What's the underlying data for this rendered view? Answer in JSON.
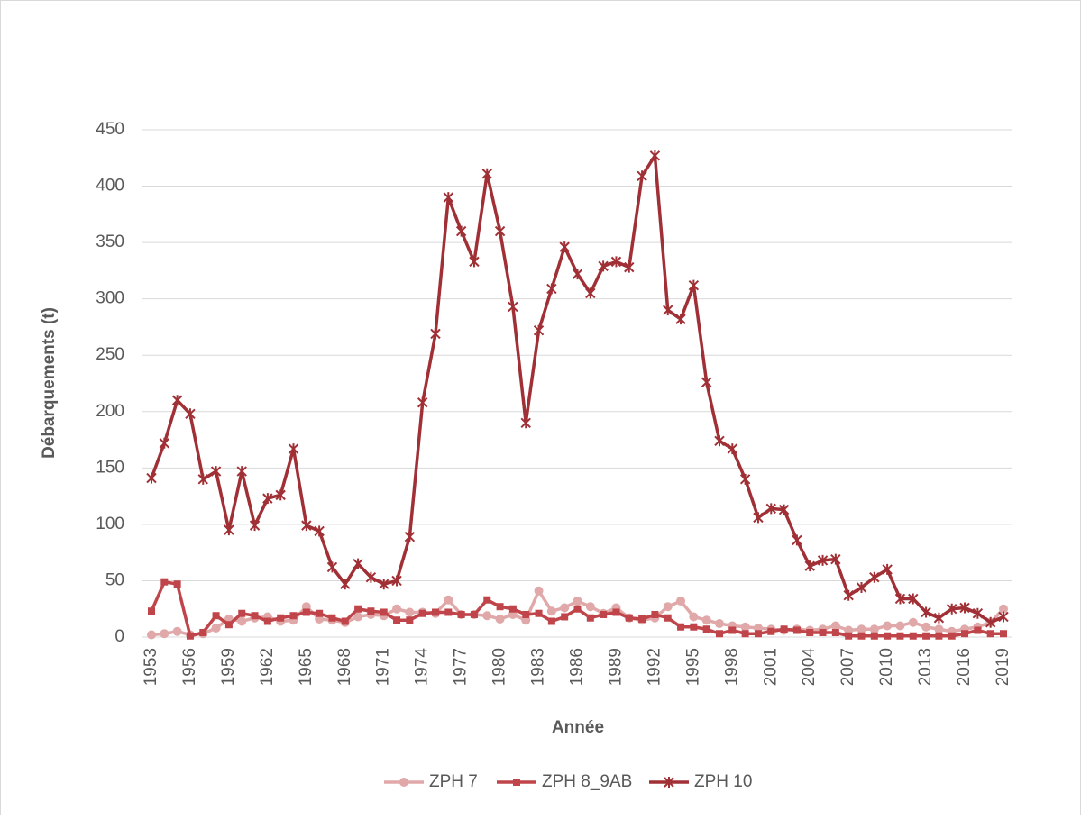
{
  "chart_data": {
    "type": "line",
    "x_label": "Année",
    "y_label": "Débarquements (t)",
    "x": [
      1953,
      1954,
      1955,
      1956,
      1957,
      1958,
      1959,
      1960,
      1961,
      1962,
      1963,
      1964,
      1965,
      1966,
      1967,
      1968,
      1969,
      1970,
      1971,
      1972,
      1973,
      1974,
      1975,
      1976,
      1977,
      1978,
      1979,
      1980,
      1981,
      1982,
      1983,
      1984,
      1985,
      1986,
      1987,
      1988,
      1989,
      1990,
      1991,
      1992,
      1993,
      1994,
      1995,
      1996,
      1997,
      1998,
      1999,
      2000,
      2001,
      2002,
      2003,
      2004,
      2005,
      2006,
      2007,
      2008,
      2009,
      2010,
      2011,
      2012,
      2013,
      2014,
      2015,
      2016,
      2017,
      2018,
      2019
    ],
    "xlim": [
      1953,
      2019
    ],
    "xticks": [
      1953,
      1956,
      1959,
      1962,
      1965,
      1968,
      1971,
      1974,
      1977,
      1980,
      1983,
      1986,
      1989,
      1992,
      1995,
      1998,
      2001,
      2004,
      2007,
      2010,
      2013,
      2016,
      2019
    ],
    "ylim": [
      0,
      450
    ],
    "yticks": [
      0,
      50,
      100,
      150,
      200,
      250,
      300,
      350,
      400,
      450
    ],
    "grid": true,
    "legend": "bottom",
    "series": [
      {
        "name": "ZPH 7",
        "color": "#e0a8a8",
        "marker": "circle",
        "values": [
          2,
          3,
          5,
          2,
          3,
          8,
          16,
          14,
          17,
          18,
          14,
          15,
          27,
          16,
          15,
          13,
          18,
          20,
          19,
          25,
          22,
          22,
          21,
          33,
          20,
          20,
          19,
          16,
          20,
          15,
          41,
          23,
          26,
          32,
          27,
          21,
          26,
          17,
          15,
          17,
          27,
          32,
          18,
          15,
          12,
          10,
          9,
          8,
          7,
          6,
          7,
          6,
          7,
          10,
          6,
          7,
          7,
          10,
          10,
          13,
          9,
          7,
          5,
          7,
          9,
          13,
          25
        ]
      },
      {
        "name": "ZPH 8_9AB",
        "color": "#c0454a",
        "marker": "square",
        "values": [
          23,
          49,
          47,
          1,
          4,
          19,
          11,
          21,
          19,
          14,
          17,
          19,
          22,
          21,
          17,
          14,
          25,
          23,
          22,
          15,
          15,
          21,
          22,
          22,
          20,
          20,
          33,
          27,
          25,
          20,
          21,
          14,
          18,
          25,
          17,
          20,
          22,
          17,
          16,
          20,
          17,
          9,
          9,
          7,
          3,
          6,
          3,
          3,
          5,
          7,
          6,
          4,
          4,
          4,
          1,
          1,
          1,
          1,
          1,
          1,
          1,
          1,
          1,
          3,
          6,
          3,
          3
        ]
      },
      {
        "name": "ZPH 10",
        "color": "#a03035",
        "marker": "star",
        "values": [
          141,
          172,
          210,
          198,
          140,
          147,
          95,
          147,
          99,
          123,
          126,
          167,
          99,
          94,
          62,
          47,
          65,
          53,
          47,
          50,
          89,
          208,
          269,
          390,
          360,
          333,
          411,
          360,
          293,
          190,
          272,
          309,
          346,
          322,
          305,
          329,
          333,
          328,
          409,
          427,
          290,
          282,
          312,
          226,
          174,
          167,
          140,
          106,
          114,
          113,
          86,
          63,
          68,
          69,
          37,
          44,
          53,
          60,
          34,
          34,
          22,
          17,
          25,
          26,
          21,
          13,
          18
        ]
      }
    ]
  }
}
